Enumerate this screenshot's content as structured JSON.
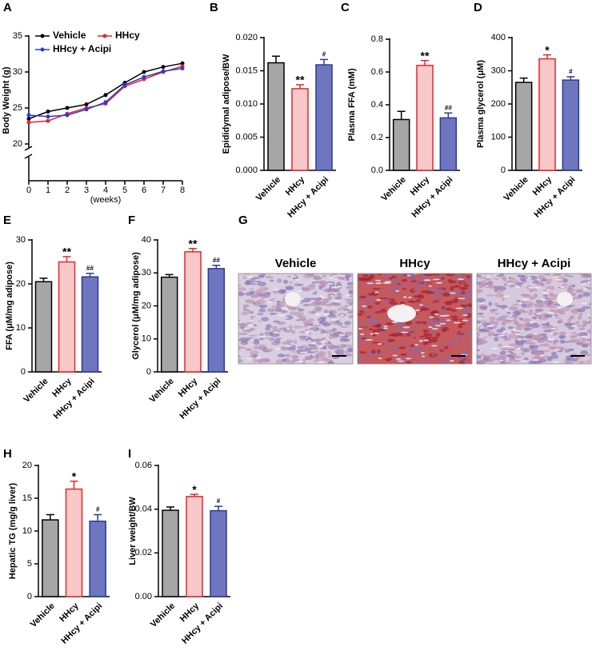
{
  "chart_data": [
    {
      "panel": "A",
      "type": "line",
      "ylabel": "Body Weight (g)",
      "xlabel": "(weeks)",
      "x": [
        0,
        1,
        2,
        3,
        4,
        5,
        6,
        7,
        8
      ],
      "xlim": [
        0,
        8
      ],
      "xticks": [
        0,
        1,
        2,
        3,
        4,
        5,
        6,
        7,
        8
      ],
      "ylim": [
        20,
        35
      ],
      "yticks": [
        20,
        25,
        30,
        35
      ],
      "series": [
        {
          "name": "Vehicle",
          "color": "#000000",
          "values": [
            23.5,
            24.5,
            25,
            25.5,
            26.8,
            28.5,
            30,
            30.7,
            31.2
          ]
        },
        {
          "name": "HHcy",
          "color": "#e8262a",
          "values": [
            23,
            23.2,
            24.2,
            25,
            25.6,
            28,
            29,
            30,
            30.8
          ]
        },
        {
          "name": "HHcy + Acipi",
          "color": "#2b3bd6",
          "values": [
            24,
            23.8,
            24,
            24.8,
            25.8,
            28.2,
            29.3,
            30.1,
            30.5
          ]
        }
      ]
    },
    {
      "panel": "B",
      "type": "bar",
      "ylabel": "Epididymal adipose/BW",
      "categories": [
        "Vehicle",
        "HHcy",
        "HHcy + Acipi"
      ],
      "values": [
        0.0162,
        0.0123,
        0.0159
      ],
      "errors": [
        0.001,
        0.0006,
        0.0008
      ],
      "annotations": [
        null,
        "**",
        "#"
      ],
      "colors": [
        "#a6a6a6",
        "#f9c9c9",
        "#6f76c0"
      ],
      "edgecolors": [
        "#000000",
        "#e8262a",
        "#2b3990"
      ],
      "ylim": [
        0,
        0.02
      ],
      "yticks": [
        {
          "value": 0,
          "label": "0.000"
        },
        0.005,
        {
          "value": 0.01,
          "label": "0.010"
        },
        {
          "value": 0.015,
          "label": "0.015"
        },
        {
          "value": 0.02,
          "label": "0.020"
        }
      ]
    },
    {
      "panel": "C",
      "type": "bar",
      "ylabel": "Plasma FFA (mM)",
      "categories": [
        "Vehicle",
        "HHcy",
        "HHcy + Acipi"
      ],
      "values": [
        0.31,
        0.64,
        0.32
      ],
      "errors": [
        0.05,
        0.03,
        0.03
      ],
      "annotations": [
        null,
        "**",
        "##"
      ],
      "colors": [
        "#a6a6a6",
        "#f9c9c9",
        "#6f76c0"
      ],
      "edgecolors": [
        "#000000",
        "#e8262a",
        "#2b3990"
      ],
      "ylim": [
        0,
        0.8
      ],
      "yticks": [
        {
          "value": 0,
          "label": "0.0"
        },
        0.2,
        0.4,
        0.6,
        0.8
      ]
    },
    {
      "panel": "D",
      "type": "bar",
      "ylabel": "Plasma glycerol (μM)",
      "categories": [
        "Vehicle",
        "HHcy",
        "HHcy + Acipi"
      ],
      "values": [
        265,
        336,
        272
      ],
      "errors": [
        13,
        12,
        10
      ],
      "annotations": [
        null,
        "*",
        "#"
      ],
      "colors": [
        "#a6a6a6",
        "#f9c9c9",
        "#6f76c0"
      ],
      "edgecolors": [
        "#000000",
        "#e8262a",
        "#2b3990"
      ],
      "ylim": [
        0,
        400
      ],
      "yticks": [
        0,
        100,
        200,
        300,
        400
      ]
    },
    {
      "panel": "E",
      "type": "bar",
      "ylabel": "FFA (μM/mg adipose)",
      "categories": [
        "Vehicle",
        "HHcy",
        "HHcy + Acipi"
      ],
      "values": [
        20.5,
        25,
        21.6
      ],
      "errors": [
        0.8,
        1.2,
        0.8
      ],
      "annotations": [
        null,
        "**",
        "##"
      ],
      "colors": [
        "#a6a6a6",
        "#f9c9c9",
        "#6f76c0"
      ],
      "edgecolors": [
        "#000000",
        "#e8262a",
        "#2b3990"
      ],
      "ylim": [
        0,
        30
      ],
      "yticks": [
        0,
        10,
        20,
        30
      ]
    },
    {
      "panel": "F",
      "type": "bar",
      "ylabel": "Glycerol (μM/mg adipose)",
      "categories": [
        "Vehicle",
        "HHcy",
        "HHcy + Acipi"
      ],
      "values": [
        28.7,
        36.4,
        31.3
      ],
      "errors": [
        0.8,
        1,
        1
      ],
      "annotations": [
        null,
        "**",
        "##"
      ],
      "colors": [
        "#a6a6a6",
        "#f9c9c9",
        "#6f76c0"
      ],
      "edgecolors": [
        "#000000",
        "#e8262a",
        "#2b3990"
      ],
      "ylim": [
        0,
        40
      ],
      "yticks": [
        0,
        10,
        20,
        30,
        40
      ]
    },
    {
      "panel": "G",
      "type": "image",
      "titles": [
        "Vehicle",
        "HHcy",
        "HHcy + Acipi"
      ]
    },
    {
      "panel": "H",
      "type": "bar",
      "ylabel": "Hepatic TG (mg/g liver)",
      "categories": [
        "Vehicle",
        "HHcy",
        "HHcy + Acipi"
      ],
      "values": [
        11.7,
        16.4,
        11.5
      ],
      "errors": [
        0.8,
        1.2,
        1
      ],
      "annotations": [
        null,
        "*",
        "#"
      ],
      "colors": [
        "#a6a6a6",
        "#f9c9c9",
        "#6f76c0"
      ],
      "edgecolors": [
        "#000000",
        "#e8262a",
        "#2b3990"
      ],
      "ylim": [
        0,
        20
      ],
      "yticks": [
        0,
        5,
        10,
        15,
        20
      ]
    },
    {
      "panel": "I",
      "type": "bar",
      "ylabel": "Liver weight/BW",
      "categories": [
        "Vehicle",
        "HHcy",
        "HHcy + Acipi"
      ],
      "values": [
        0.0395,
        0.0458,
        0.0393
      ],
      "errors": [
        0.0015,
        0.001,
        0.002
      ],
      "annotations": [
        null,
        "*",
        "#"
      ],
      "colors": [
        "#a6a6a6",
        "#f9c9c9",
        "#6f76c0"
      ],
      "edgecolors": [
        "#000000",
        "#e8262a",
        "#2b3990"
      ],
      "ylim": [
        0,
        0.06
      ],
      "yticks": [
        {
          "value": 0,
          "label": "0.00"
        },
        0.02,
        0.04,
        0.06
      ]
    }
  ]
}
